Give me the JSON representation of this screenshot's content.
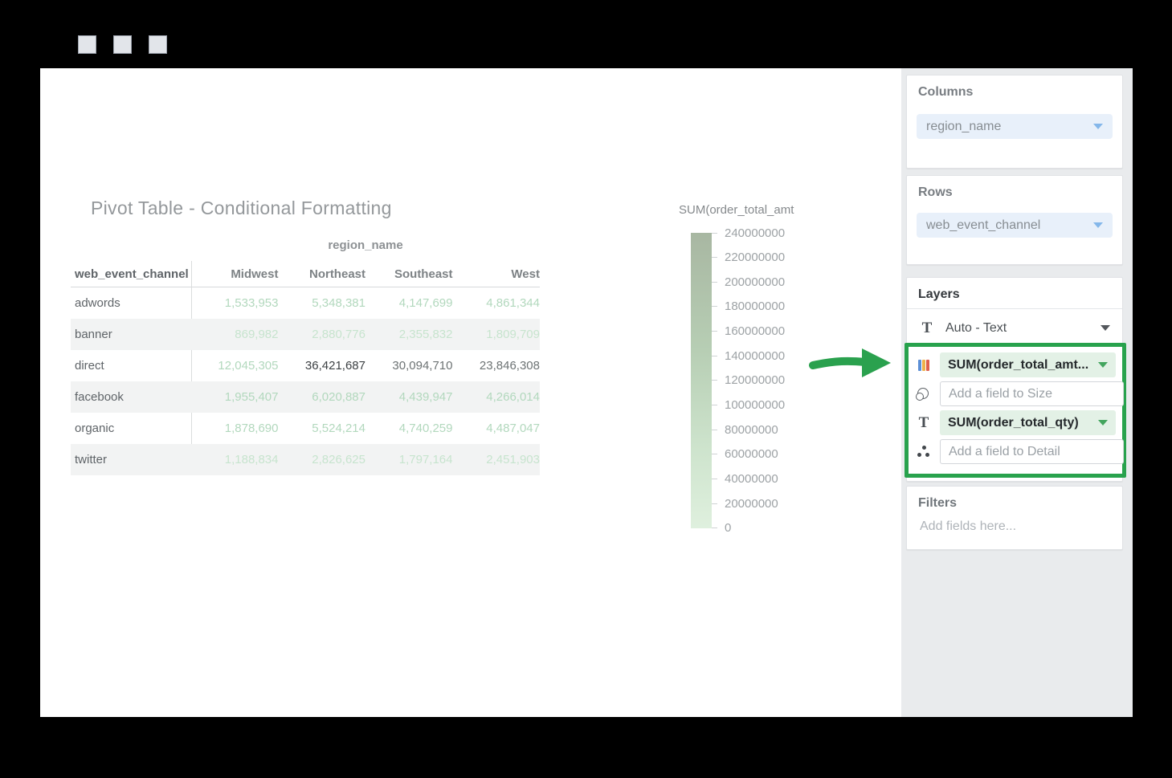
{
  "pivot": {
    "title": "Pivot Table - Conditional Formatting",
    "column_dimension_label": "region_name",
    "row_dimension_label": "web_event_channel",
    "columns": [
      "Midwest",
      "Northeast",
      "Southeast",
      "West"
    ],
    "rows": [
      {
        "label": "adwords",
        "striped": false,
        "cells": [
          {
            "v": "1,533,953",
            "tone": "light"
          },
          {
            "v": "5,348,381",
            "tone": "light"
          },
          {
            "v": "4,147,699",
            "tone": "light"
          },
          {
            "v": "4,861,344",
            "tone": "light"
          }
        ]
      },
      {
        "label": "banner",
        "striped": true,
        "cells": [
          {
            "v": "869,982",
            "tone": "lighter"
          },
          {
            "v": "2,880,776",
            "tone": "lighter"
          },
          {
            "v": "2,355,832",
            "tone": "lighter"
          },
          {
            "v": "1,809,709",
            "tone": "lighter"
          }
        ]
      },
      {
        "label": "direct",
        "striped": false,
        "cells": [
          {
            "v": "12,045,305",
            "tone": "light"
          },
          {
            "v": "36,421,687",
            "tone": "dark"
          },
          {
            "v": "30,094,710",
            "tone": "medium"
          },
          {
            "v": "23,846,308",
            "tone": "medium"
          }
        ]
      },
      {
        "label": "facebook",
        "striped": true,
        "cells": [
          {
            "v": "1,955,407",
            "tone": "light"
          },
          {
            "v": "6,020,887",
            "tone": "light"
          },
          {
            "v": "4,439,947",
            "tone": "light"
          },
          {
            "v": "4,266,014",
            "tone": "light"
          }
        ]
      },
      {
        "label": "organic",
        "striped": false,
        "cells": [
          {
            "v": "1,878,690",
            "tone": "light"
          },
          {
            "v": "5,524,214",
            "tone": "light"
          },
          {
            "v": "4,740,259",
            "tone": "light"
          },
          {
            "v": "4,487,047",
            "tone": "light"
          }
        ]
      },
      {
        "label": "twitter",
        "striped": true,
        "cells": [
          {
            "v": "1,188,834",
            "tone": "lighter"
          },
          {
            "v": "2,826,625",
            "tone": "lighter"
          },
          {
            "v": "1,797,164",
            "tone": "lighter"
          },
          {
            "v": "2,451,903",
            "tone": "lighter"
          }
        ]
      }
    ]
  },
  "legend": {
    "title": "SUM(order_total_amt",
    "ticks": [
      "240000000",
      "220000000",
      "200000000",
      "180000000",
      "160000000",
      "140000000",
      "120000000",
      "100000000",
      "80000000",
      "60000000",
      "40000000",
      "20000000",
      "0"
    ],
    "gradient_top": "#a8b7a2",
    "gradient_bottom": "#dff0de"
  },
  "sidebar": {
    "columns_label": "Columns",
    "columns_field": "region_name",
    "rows_label": "Rows",
    "rows_field": "web_event_channel",
    "layers_label": "Layers",
    "layer_mode": "Auto - Text",
    "layer_slots": [
      {
        "name": "color",
        "icon": "colors-icon",
        "kind": "pill",
        "text": "SUM(order_total_amt..."
      },
      {
        "name": "size",
        "icon": "size-icon",
        "kind": "input",
        "placeholder": "Add a field to Size"
      },
      {
        "name": "text",
        "icon": "text-icon",
        "kind": "pill",
        "text": "SUM(order_total_qty)"
      },
      {
        "name": "detail",
        "icon": "detail-icon",
        "kind": "input",
        "placeholder": "Add a field to Detail"
      }
    ],
    "filters_label": "Filters",
    "filters_placeholder": "Add fields here..."
  },
  "colors": {
    "annotation_green": "#2aa14e",
    "pill_green_bg": "#e3f1e6",
    "pill_blue_bg": "#e8f0fa",
    "value_light": "#b2d8bd",
    "value_lighter": "#c7e4ce",
    "value_medium": "#6d7374",
    "value_dark": "#3c4043",
    "legend_gradient_top": "#a8b7a2",
    "legend_gradient_bottom": "#dff0de"
  }
}
